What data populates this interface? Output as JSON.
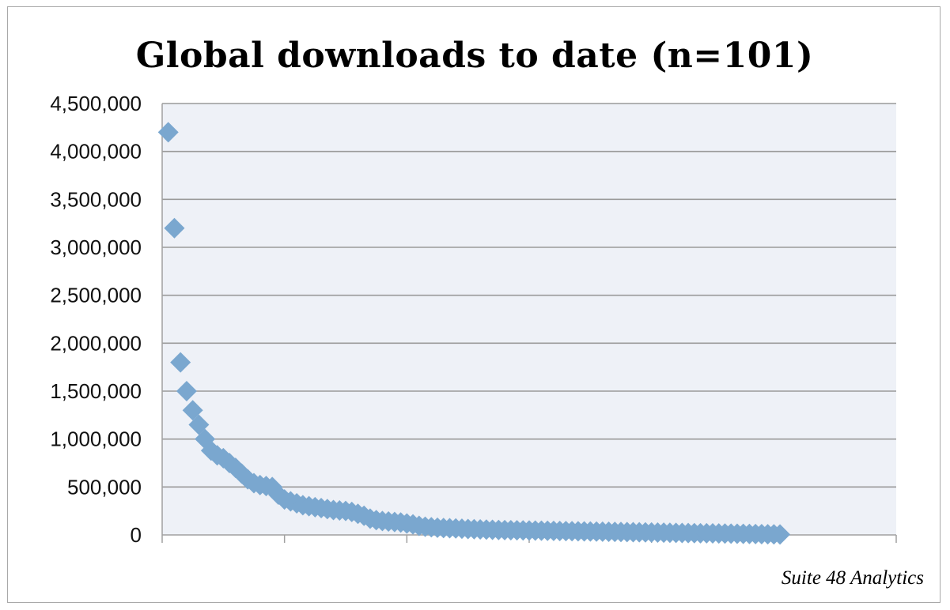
{
  "chart_data": {
    "type": "scatter",
    "title": "Global downloads to date (n=101)",
    "xlabel": "",
    "ylabel": "",
    "ylim": [
      0,
      4500000
    ],
    "xlim": [
      0,
      120
    ],
    "y_tick_labels": [
      "0",
      "500,000",
      "1,000,000",
      "1,500,000",
      "2,000,000",
      "2,500,000",
      "3,000,000",
      "3,500,000",
      "4,000,000",
      "4,500,000"
    ],
    "grid": true,
    "legend": "none",
    "colors": {
      "marker": "#7aa7cf",
      "plot_bg": "#eef1f7",
      "grid": "#9a9a9a",
      "axis": "#a0a0a0"
    },
    "marker_shape": "diamond",
    "points": [
      [
        1,
        4200000
      ],
      [
        2,
        3200000
      ],
      [
        3,
        1800000
      ],
      [
        4,
        1500000
      ],
      [
        5,
        1300000
      ],
      [
        6,
        1150000
      ],
      [
        7,
        1000000
      ],
      [
        8,
        880000
      ],
      [
        9,
        830000
      ],
      [
        10,
        800000
      ],
      [
        11,
        750000
      ],
      [
        12,
        700000
      ],
      [
        13,
        640000
      ],
      [
        14,
        580000
      ],
      [
        15,
        540000
      ],
      [
        16,
        520000
      ],
      [
        17,
        510000
      ],
      [
        18,
        500000
      ],
      [
        19,
        420000
      ],
      [
        20,
        370000
      ],
      [
        21,
        350000
      ],
      [
        22,
        330000
      ],
      [
        23,
        310000
      ],
      [
        24,
        300000
      ],
      [
        25,
        290000
      ],
      [
        26,
        280000
      ],
      [
        27,
        270000
      ],
      [
        28,
        260000
      ],
      [
        29,
        255000
      ],
      [
        30,
        250000
      ],
      [
        31,
        240000
      ],
      [
        32,
        220000
      ],
      [
        33,
        200000
      ],
      [
        34,
        170000
      ],
      [
        35,
        155000
      ],
      [
        36,
        145000
      ],
      [
        37,
        140000
      ],
      [
        38,
        135000
      ],
      [
        39,
        130000
      ],
      [
        40,
        120000
      ],
      [
        41,
        110000
      ],
      [
        42,
        95000
      ],
      [
        43,
        85000
      ],
      [
        44,
        80000
      ],
      [
        45,
        75000
      ],
      [
        46,
        72000
      ],
      [
        47,
        70000
      ],
      [
        48,
        68000
      ],
      [
        49,
        65000
      ],
      [
        50,
        62000
      ],
      [
        51,
        60000
      ],
      [
        52,
        58000
      ],
      [
        53,
        56000
      ],
      [
        54,
        54000
      ],
      [
        55,
        52000
      ],
      [
        56,
        50000
      ],
      [
        57,
        49000
      ],
      [
        58,
        48000
      ],
      [
        59,
        47000
      ],
      [
        60,
        46000
      ],
      [
        61,
        45000
      ],
      [
        62,
        44000
      ],
      [
        63,
        43000
      ],
      [
        64,
        42000
      ],
      [
        65,
        41000
      ],
      [
        66,
        40000
      ],
      [
        67,
        39000
      ],
      [
        68,
        38000
      ],
      [
        69,
        37000
      ],
      [
        70,
        36000
      ],
      [
        71,
        35000
      ],
      [
        72,
        34000
      ],
      [
        73,
        33000
      ],
      [
        74,
        32000
      ],
      [
        75,
        31000
      ],
      [
        76,
        30000
      ],
      [
        77,
        29000
      ],
      [
        78,
        28000
      ],
      [
        79,
        27000
      ],
      [
        80,
        26000
      ],
      [
        81,
        25000
      ],
      [
        82,
        24000
      ],
      [
        83,
        23000
      ],
      [
        84,
        22000
      ],
      [
        85,
        21000
      ],
      [
        86,
        20000
      ],
      [
        87,
        19000
      ],
      [
        88,
        18000
      ],
      [
        89,
        17000
      ],
      [
        90,
        16000
      ],
      [
        91,
        15000
      ],
      [
        92,
        14000
      ],
      [
        93,
        13000
      ],
      [
        94,
        12000
      ],
      [
        95,
        11000
      ],
      [
        96,
        10000
      ],
      [
        97,
        9000
      ],
      [
        98,
        8000
      ],
      [
        99,
        7000
      ],
      [
        100,
        6000
      ],
      [
        101,
        5000
      ]
    ]
  },
  "credit": "Suite 48 Analytics"
}
